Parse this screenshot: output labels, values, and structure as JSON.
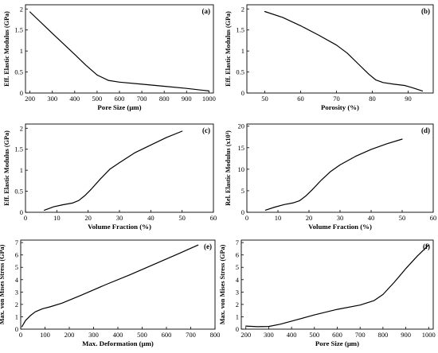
{
  "chart_data": [
    {
      "type": "line",
      "label": "(a)",
      "xlabel": "Pore Size (μm)",
      "ylabel": "Eff. Elastic Modulus (GPa)",
      "xlim": [
        180,
        1020
      ],
      "ylim": [
        0,
        2.1
      ],
      "xticks": [
        200,
        300,
        400,
        500,
        600,
        700,
        800,
        900,
        1000
      ],
      "yticks": [
        0,
        0.5,
        1,
        1.5,
        2
      ],
      "x": [
        200,
        300,
        400,
        450,
        500,
        550,
        600,
        700,
        800,
        900,
        1000
      ],
      "y": [
        1.93,
        1.42,
        0.92,
        0.66,
        0.43,
        0.3,
        0.26,
        0.21,
        0.16,
        0.11,
        0.05
      ]
    },
    {
      "type": "line",
      "label": "(b)",
      "xlabel": "Porosity (%)",
      "ylabel": "Eff. Elastic Modulus (GPa)",
      "xlim": [
        45,
        97
      ],
      "ylim": [
        0,
        2.1
      ],
      "xticks": [
        50,
        60,
        70,
        80,
        90
      ],
      "yticks": [
        0,
        0.5,
        1,
        1.5,
        2
      ],
      "x": [
        50,
        55,
        60,
        65,
        70,
        73,
        76,
        79,
        81,
        83,
        86,
        89,
        91,
        94
      ],
      "y": [
        1.94,
        1.8,
        1.6,
        1.38,
        1.14,
        0.95,
        0.7,
        0.45,
        0.31,
        0.25,
        0.21,
        0.18,
        0.13,
        0.05
      ]
    },
    {
      "type": "line",
      "label": "(c)",
      "xlabel": "Volume Fraction (%)",
      "ylabel": "Eff. Elastic Modulus (GPa)",
      "xlim": [
        0,
        60
      ],
      "ylim": [
        0,
        2.1
      ],
      "xticks": [
        0,
        10,
        20,
        30,
        40,
        50,
        60
      ],
      "yticks": [
        0,
        0.5,
        1,
        1.5,
        2
      ],
      "x": [
        6,
        9,
        12,
        15,
        17,
        19,
        21,
        24,
        27,
        30,
        35,
        40,
        45,
        50
      ],
      "y": [
        0.05,
        0.13,
        0.18,
        0.22,
        0.28,
        0.4,
        0.55,
        0.8,
        1.03,
        1.18,
        1.42,
        1.6,
        1.78,
        1.93
      ]
    },
    {
      "type": "line",
      "label": "(d)",
      "xlabel": "Volume Fraction (%)",
      "ylabel": "Rel. Elastic Modulus (x10³)",
      "xlim": [
        0,
        60
      ],
      "ylim": [
        0,
        20.5
      ],
      "xticks": [
        0,
        10,
        20,
        30,
        40,
        50,
        60
      ],
      "yticks": [
        0,
        5,
        10,
        15,
        20
      ],
      "x": [
        6,
        9,
        12,
        15,
        17,
        19,
        21,
        24,
        27,
        30,
        35,
        40,
        45,
        50
      ],
      "y": [
        0.5,
        1.2,
        1.8,
        2.2,
        2.7,
        3.8,
        5.2,
        7.5,
        9.5,
        11.0,
        13.0,
        14.6,
        15.9,
        17.0
      ]
    },
    {
      "type": "line",
      "label": "(e)",
      "xlabel": "Max. Deformation (μm)",
      "ylabel": "Max. von Mises Stress (GPa)",
      "xlim": [
        0,
        800
      ],
      "ylim": [
        0,
        7.2
      ],
      "xticks": [
        0,
        100,
        200,
        300,
        400,
        500,
        600,
        700,
        800
      ],
      "yticks": [
        0,
        1,
        2,
        3,
        4,
        5,
        6,
        7
      ],
      "x": [
        5,
        20,
        40,
        60,
        90,
        120,
        170,
        250,
        350,
        450,
        550,
        650,
        730
      ],
      "y": [
        0.2,
        0.7,
        1.1,
        1.4,
        1.65,
        1.8,
        2.1,
        2.75,
        3.6,
        4.4,
        5.25,
        6.1,
        6.8
      ]
    },
    {
      "type": "line",
      "label": "(f)",
      "xlabel": "Pore Size (μm)",
      "ylabel": "Max. von Mises Stress (GPa)",
      "xlim": [
        180,
        1020
      ],
      "ylim": [
        0,
        7.2
      ],
      "xticks": [
        200,
        300,
        400,
        500,
        600,
        700,
        800,
        900,
        1000
      ],
      "yticks": [
        0,
        1,
        2,
        3,
        4,
        5,
        6,
        7
      ],
      "x": [
        200,
        250,
        300,
        350,
        400,
        500,
        600,
        700,
        760,
        800,
        850,
        900,
        950,
        1000
      ],
      "y": [
        0.25,
        0.2,
        0.22,
        0.4,
        0.65,
        1.15,
        1.6,
        1.95,
        2.3,
        2.8,
        3.8,
        4.9,
        5.9,
        6.8
      ]
    }
  ]
}
